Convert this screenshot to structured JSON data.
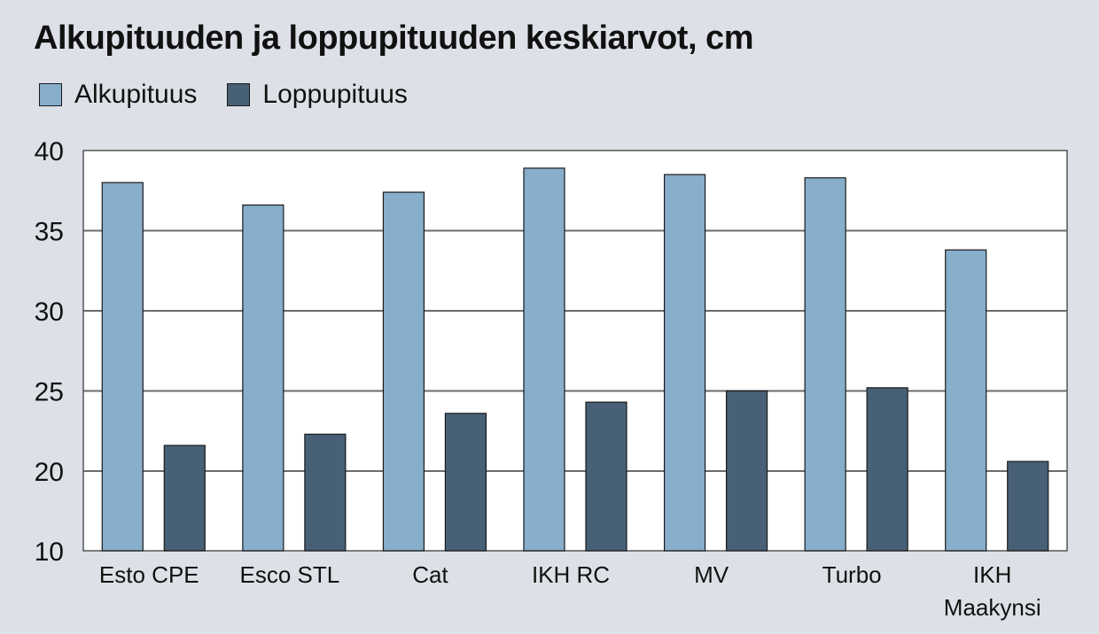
{
  "chart_data": {
    "type": "bar",
    "title": "Alkupituuden ja loppupituuden keskiarvot, cm",
    "categories": [
      [
        "Esto CPE"
      ],
      [
        "Esco STL"
      ],
      [
        "Cat"
      ],
      [
        "IKH RC"
      ],
      [
        "MV"
      ],
      [
        "Turbo"
      ],
      [
        "IKH",
        "Maakynsi"
      ]
    ],
    "series": [
      {
        "name": "Alkupituus",
        "color": "#87aecb",
        "values": [
          38.0,
          36.6,
          37.4,
          38.9,
          38.5,
          38.3,
          33.8
        ]
      },
      {
        "name": "Loppupituus",
        "color": "#476075",
        "values": [
          21.6,
          22.3,
          23.6,
          24.3,
          25.0,
          25.2,
          20.6
        ]
      }
    ],
    "yticks": [
      10,
      20,
      25,
      30,
      35,
      40
    ],
    "ylim": [
      10,
      40
    ],
    "grid": true,
    "legend_position": "top-left"
  }
}
